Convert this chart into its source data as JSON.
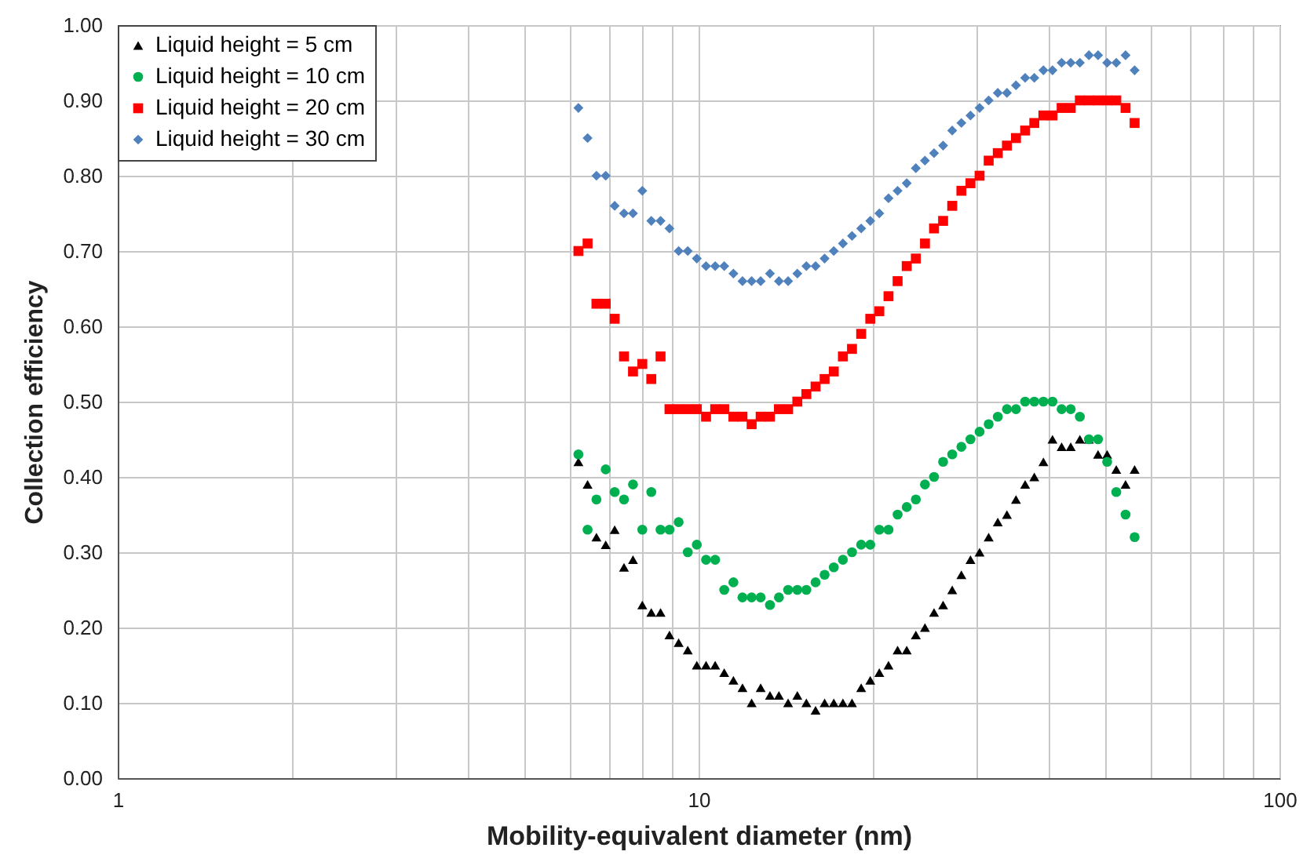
{
  "chart_data": {
    "type": "scatter",
    "xlabel": "Mobility-equivalent diameter (nm)",
    "ylabel": "Collection efficiency",
    "log": "x",
    "grid": true,
    "legend": "top left",
    "xlim": [
      1,
      100
    ],
    "ylim": [
      0,
      1
    ],
    "xticks": [
      1,
      {
        "value": 2,
        "label": null
      },
      {
        "value": 3,
        "label": null
      },
      {
        "value": 4,
        "label": null
      },
      {
        "value": 5,
        "label": null
      },
      {
        "value": 6,
        "label": null
      },
      {
        "value": 7,
        "label": null
      },
      {
        "value": 8,
        "label": null
      },
      {
        "value": 9,
        "label": null
      },
      10,
      {
        "value": 20,
        "label": null
      },
      {
        "value": 30,
        "label": null
      },
      {
        "value": 40,
        "label": null
      },
      {
        "value": 50,
        "label": null
      },
      {
        "value": 60,
        "label": null
      },
      {
        "value": 70,
        "label": null
      },
      {
        "value": 80,
        "label": null
      },
      {
        "value": 90,
        "label": null
      },
      100
    ],
    "yticks": [
      {
        "value": 0,
        "label": "0.00"
      },
      {
        "value": 0.1,
        "label": "0.10"
      },
      {
        "value": 0.2,
        "label": "0.20"
      },
      {
        "value": 0.3,
        "label": "0.30"
      },
      {
        "value": 0.4,
        "label": "0.40"
      },
      {
        "value": 0.5,
        "label": "0.50"
      },
      {
        "value": 0.6,
        "label": "0.60"
      },
      {
        "value": 0.7,
        "label": "0.70"
      },
      {
        "value": 0.8,
        "label": "0.80"
      },
      {
        "value": 0.9,
        "label": "0.90"
      },
      {
        "value": 1,
        "label": "1.00"
      }
    ],
    "x": [
      6.21,
      6.44,
      6.67,
      6.92,
      7.17,
      7.44,
      7.71,
      8.0,
      8.29,
      8.6,
      8.91,
      9.24,
      9.58,
      9.93,
      10.3,
      10.68,
      11.07,
      11.48,
      11.9,
      12.34,
      12.79,
      13.27,
      13.75,
      14.26,
      14.79,
      15.33,
      15.9,
      16.48,
      17.09,
      17.72,
      18.37,
      19.05,
      19.75,
      20.47,
      21.23,
      22.01,
      22.82,
      23.66,
      24.53,
      25.43,
      26.36,
      27.33,
      28.34,
      29.38,
      30.46,
      31.58,
      32.74,
      33.95,
      35.19,
      36.49,
      37.84,
      39.23,
      40.67,
      42.17,
      43.72,
      45.33,
      46.99,
      48.72,
      50.51,
      52.37,
      54.33,
      56.32
    ],
    "series": [
      {
        "name": "Liquid height = 5 cm",
        "color": "#000000",
        "marker": "triangle",
        "values": [
          0.42,
          0.39,
          0.32,
          0.31,
          0.33,
          0.28,
          0.29,
          0.23,
          0.22,
          0.22,
          0.19,
          0.18,
          0.17,
          0.15,
          0.15,
          0.15,
          0.14,
          0.13,
          0.12,
          0.1,
          0.12,
          0.11,
          0.11,
          0.1,
          0.11,
          0.1,
          0.09,
          0.1,
          0.1,
          0.1,
          0.1,
          0.12,
          0.13,
          0.14,
          0.15,
          0.17,
          0.17,
          0.19,
          0.2,
          0.22,
          0.23,
          0.25,
          0.27,
          0.29,
          0.3,
          0.32,
          0.34,
          0.35,
          0.37,
          0.39,
          0.4,
          0.42,
          0.45,
          0.44,
          0.44,
          0.45,
          0.45,
          0.43,
          0.43,
          0.41,
          0.39,
          0.41
        ]
      },
      {
        "name": "Liquid height = 10 cm",
        "color": "#00b050",
        "marker": "circle",
        "values": [
          0.43,
          0.33,
          0.37,
          0.41,
          0.38,
          0.37,
          0.39,
          0.33,
          0.38,
          0.33,
          0.33,
          0.34,
          0.3,
          0.31,
          0.29,
          0.29,
          0.25,
          0.26,
          0.24,
          0.24,
          0.24,
          0.23,
          0.24,
          0.25,
          0.25,
          0.25,
          0.26,
          0.27,
          0.28,
          0.29,
          0.3,
          0.31,
          0.31,
          0.33,
          0.33,
          0.35,
          0.36,
          0.37,
          0.39,
          0.4,
          0.42,
          0.43,
          0.44,
          0.45,
          0.46,
          0.47,
          0.48,
          0.49,
          0.49,
          0.5,
          0.5,
          0.5,
          0.5,
          0.49,
          0.49,
          0.48,
          0.45,
          0.45,
          0.42,
          0.38,
          0.35,
          0.32
        ]
      },
      {
        "name": "Liquid height = 20 cm",
        "color": "#ff0000",
        "marker": "square",
        "values": [
          0.7,
          0.71,
          0.63,
          0.63,
          0.61,
          0.56,
          0.54,
          0.55,
          0.53,
          0.56,
          0.49,
          0.49,
          0.49,
          0.49,
          0.48,
          0.49,
          0.49,
          0.48,
          0.48,
          0.47,
          0.48,
          0.48,
          0.49,
          0.49,
          0.5,
          0.51,
          0.52,
          0.53,
          0.54,
          0.56,
          0.57,
          0.59,
          0.61,
          0.62,
          0.64,
          0.66,
          0.68,
          0.69,
          0.71,
          0.73,
          0.74,
          0.76,
          0.78,
          0.79,
          0.8,
          0.82,
          0.83,
          0.84,
          0.85,
          0.86,
          0.87,
          0.88,
          0.88,
          0.89,
          0.89,
          0.9,
          0.9,
          0.9,
          0.9,
          0.9,
          0.89,
          0.87
        ]
      },
      {
        "name": "Liquid height = 30 cm",
        "color": "#4f81bd",
        "marker": "diamond",
        "values": [
          0.89,
          0.85,
          0.8,
          0.8,
          0.76,
          0.75,
          0.75,
          0.78,
          0.74,
          0.74,
          0.73,
          0.7,
          0.7,
          0.69,
          0.68,
          0.68,
          0.68,
          0.67,
          0.66,
          0.66,
          0.66,
          0.67,
          0.66,
          0.66,
          0.67,
          0.68,
          0.68,
          0.69,
          0.7,
          0.71,
          0.72,
          0.73,
          0.74,
          0.75,
          0.77,
          0.78,
          0.79,
          0.81,
          0.82,
          0.83,
          0.84,
          0.86,
          0.87,
          0.88,
          0.89,
          0.9,
          0.91,
          0.91,
          0.92,
          0.93,
          0.93,
          0.94,
          0.94,
          0.95,
          0.95,
          0.95,
          0.96,
          0.96,
          0.95,
          0.95,
          0.96,
          0.94
        ]
      }
    ]
  }
}
